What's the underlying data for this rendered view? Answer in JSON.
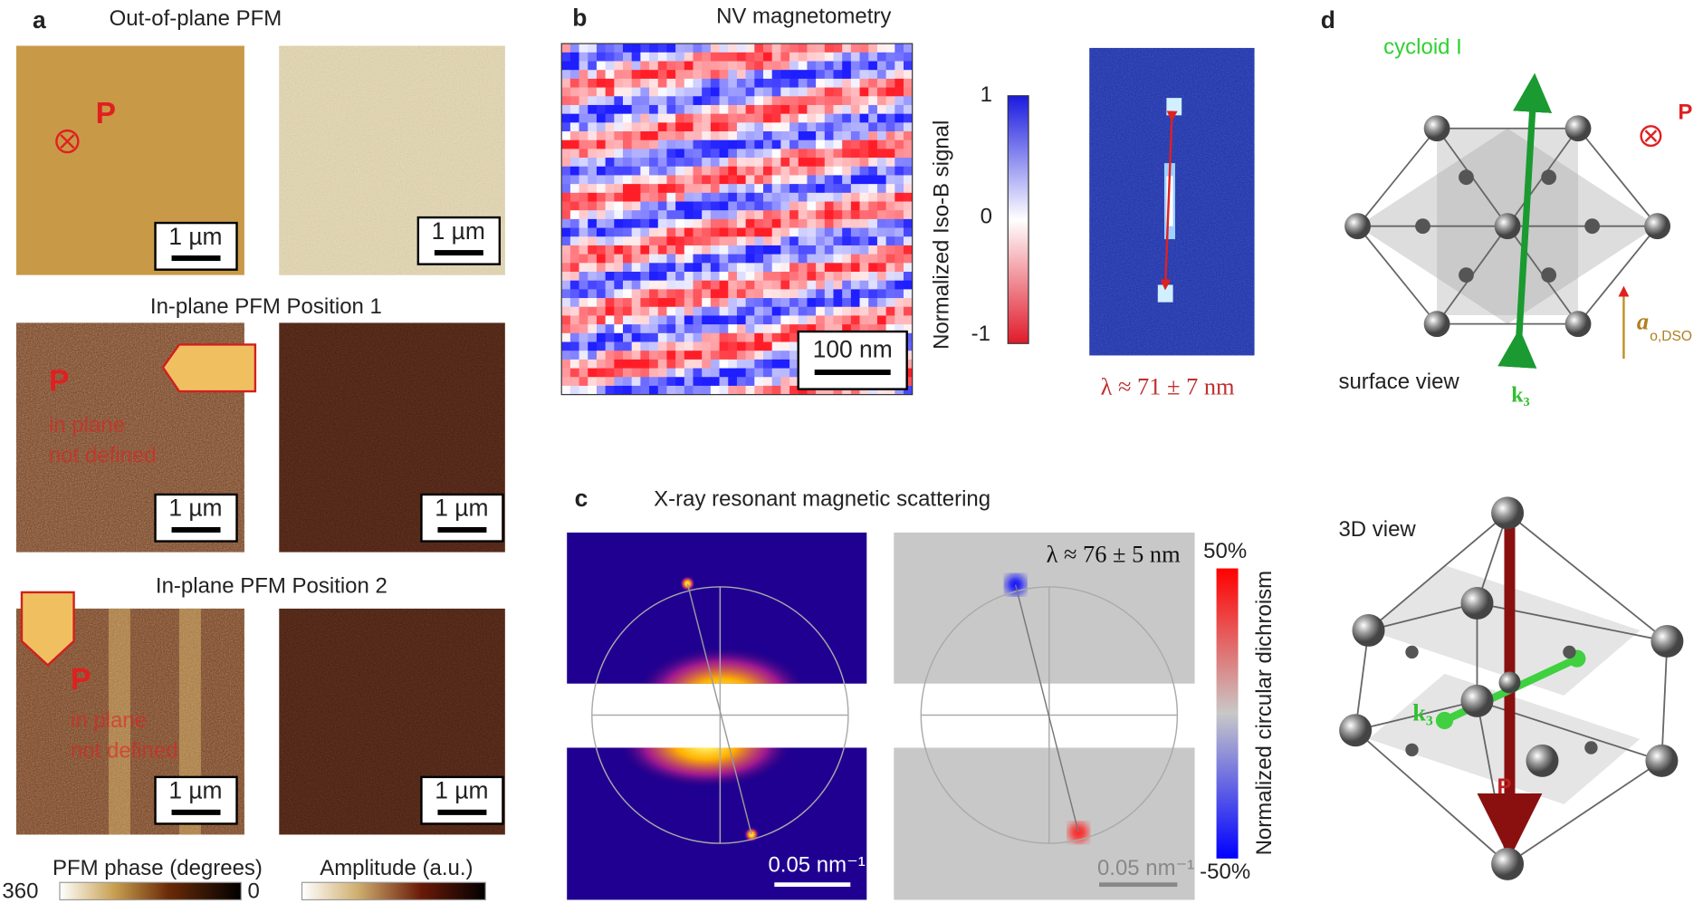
{
  "panels": {
    "a": {
      "label": "a",
      "title": "Out-of-plane PFM",
      "row2_title": "In-plane PFM Position 1",
      "row3_title": "In-plane PFM Position 2",
      "scale_bars": [
        "1 µm",
        "1 µm",
        "1 µm",
        "1 µm",
        "1 µm",
        "1 µm"
      ],
      "polarization": [
        "P",
        "P",
        "P"
      ],
      "row2_note": [
        "in plane",
        "not defined"
      ],
      "row3_note": [
        "in plane",
        "not defined"
      ],
      "colorbars": [
        {
          "title": "PFM phase (degrees)",
          "left_label": "360",
          "right_label": "0"
        },
        {
          "title": "Amplitude (a.u.)"
        }
      ]
    },
    "b": {
      "label": "b",
      "title": "NV magnetometry",
      "scale_bar": "100 nm",
      "colorbar_title": "Normalized  Iso-B signal",
      "colorbar_ticks": [
        "1",
        "0",
        "-1"
      ],
      "wavelength": "λ ≈ 71 ± 7 nm"
    },
    "c": {
      "label": "c",
      "title": "X-ray resonant magnetic scattering",
      "wavelength": "λ ≈ 76 ± 5 nm",
      "scale_bars": [
        "0.05 nm⁻¹",
        "0.05 nm⁻¹"
      ],
      "colorbar_title": "Normalized circular dichroism",
      "colorbar_ticks": [
        "50%",
        "-50%"
      ]
    },
    "d": {
      "label": "d",
      "cycloid": "cycloid I",
      "polarization": [
        "P",
        "P"
      ],
      "surface_view": "surface view",
      "view_3d": "3D view",
      "wavevector": [
        "k₃",
        "k₃"
      ],
      "lattice_a": "a",
      "lattice_sub": "o,DSO"
    }
  }
}
